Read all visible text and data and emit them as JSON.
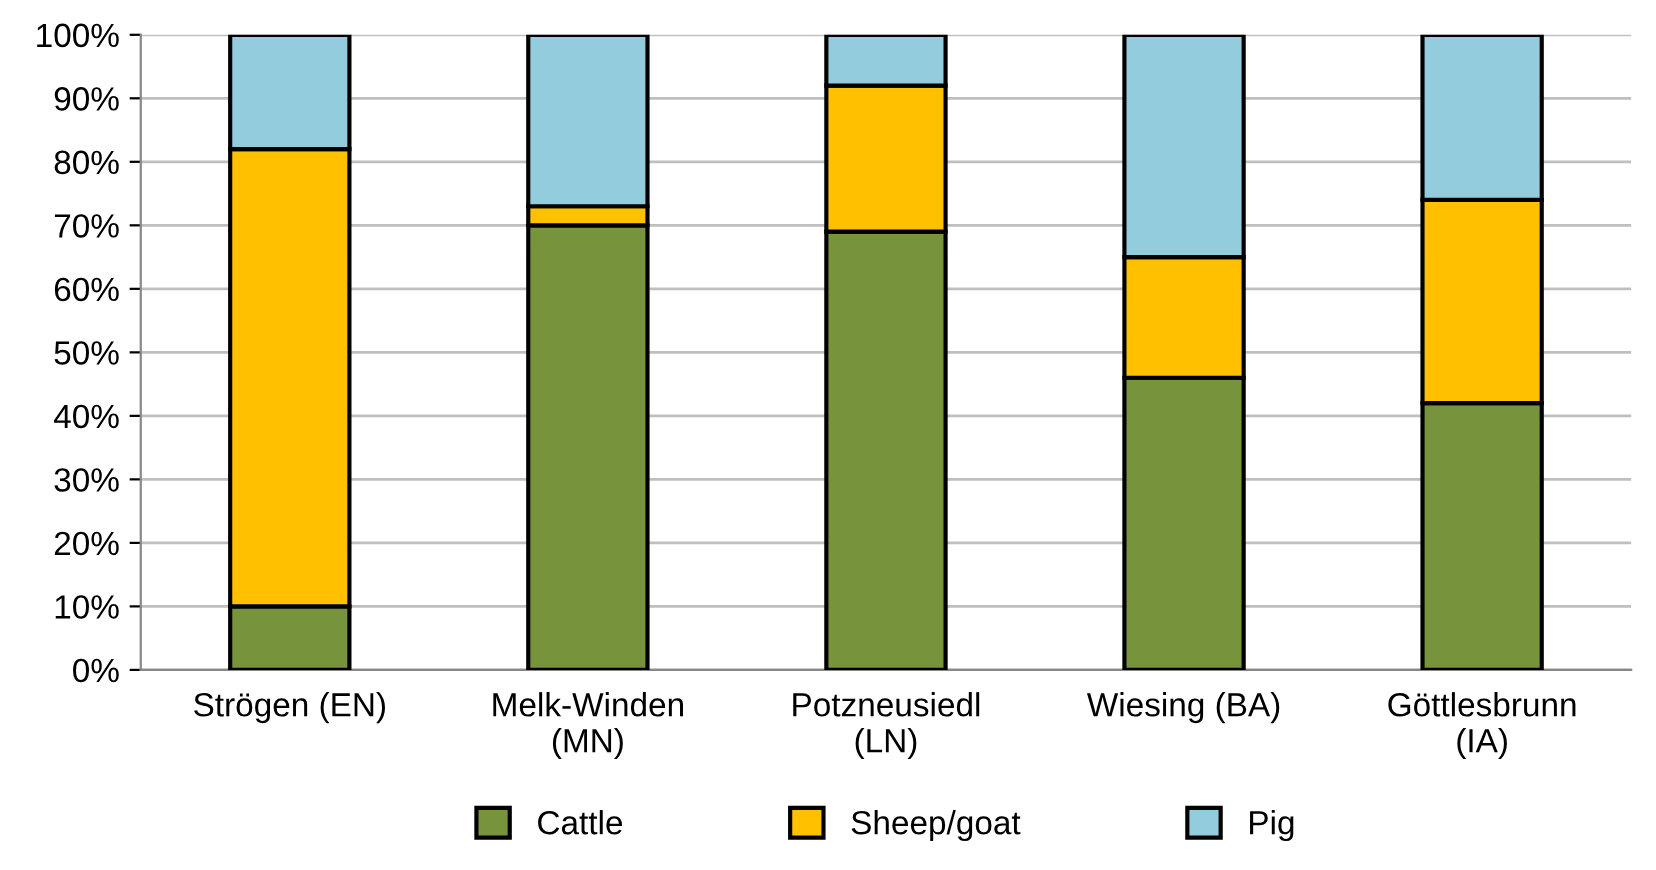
{
  "chart_data": {
    "type": "bar",
    "stacked": true,
    "categories": [
      "Strögen (EN)",
      "Melk-Winden\n(MN)",
      "Potzneusiedl\n(LN)",
      "Wiesing (BA)",
      "Göttlesbrunn\n(IA)"
    ],
    "series": [
      {
        "name": "Cattle",
        "color": "#77933c",
        "values": [
          10,
          70,
          69,
          46,
          42
        ]
      },
      {
        "name": "Sheep/goat",
        "color": "#ffc000",
        "values": [
          72,
          3,
          23,
          19,
          32
        ]
      },
      {
        "name": "Pig",
        "color": "#93cddd",
        "values": [
          18,
          27,
          8,
          35,
          26
        ]
      }
    ],
    "ylim": [
      0,
      100
    ],
    "yticks": [
      {
        "value": 0,
        "label": "0%"
      },
      {
        "value": 10,
        "label": "10%"
      },
      {
        "value": 20,
        "label": "20%"
      },
      {
        "value": 30,
        "label": "30%"
      },
      {
        "value": 40,
        "label": "40%"
      },
      {
        "value": 50,
        "label": "50%"
      },
      {
        "value": 60,
        "label": "60%"
      },
      {
        "value": 70,
        "label": "70%"
      },
      {
        "value": 80,
        "label": "80%"
      },
      {
        "value": 90,
        "label": "90%"
      },
      {
        "value": 100,
        "label": "100%"
      }
    ],
    "grid": "y",
    "legend": "bottom"
  }
}
